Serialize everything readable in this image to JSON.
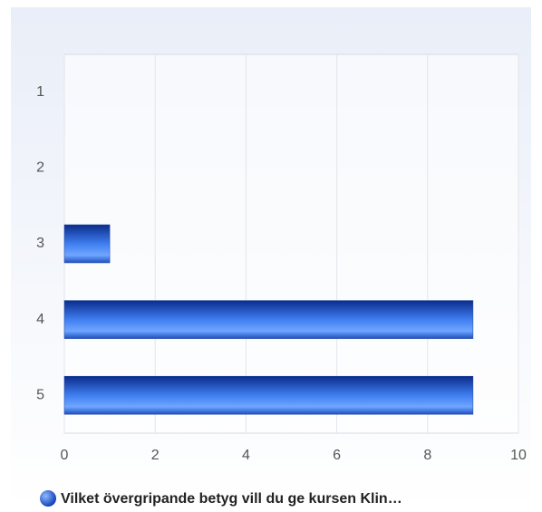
{
  "chart_data": {
    "type": "hbar",
    "categories": [
      "1",
      "2",
      "3",
      "4",
      "5"
    ],
    "series": [
      {
        "name": "Vilket övergripande betyg vill du ge kursen Klin…",
        "color": "#2b62d6",
        "values": [
          0,
          0,
          1,
          9,
          9
        ]
      }
    ],
    "xlim": [
      0,
      10
    ],
    "xticks": [
      0,
      2,
      4,
      6,
      8,
      10
    ],
    "grid": true,
    "legend": "bottom"
  }
}
